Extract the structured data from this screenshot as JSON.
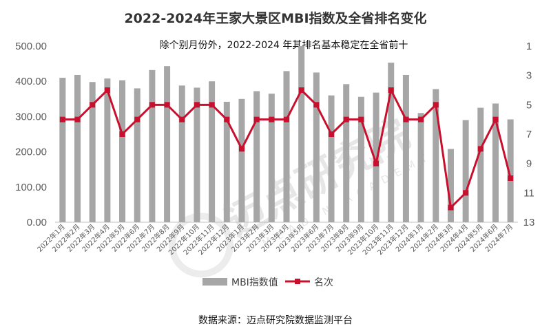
{
  "title": "2022-2024年王家大景区MBI指数及全省排名变化",
  "subtitle": "除个别月份外，2022-2024 年其排名基本稳定在全省前十",
  "source": "数据来源：迈点研究院数据监测平台",
  "watermark": {
    "cn": "迈点研究院",
    "en": "MEADIN ACADEMY"
  },
  "colors": {
    "bar": "#a6a6a6",
    "line": "#c8102e",
    "axis": "#bfbfbf",
    "text": "#595959"
  },
  "chart_data": {
    "type": "bar",
    "categories": [
      "2022年1月",
      "2022年2月",
      "2022年3月",
      "2022年4月",
      "2022年5月",
      "2022年6月",
      "2022年7月",
      "2022年8月",
      "2022年9月",
      "2022年10月",
      "2022年11月",
      "2022年12月",
      "2023年1月",
      "2023年2月",
      "2023年3月",
      "2023年4月",
      "2023年5月",
      "2023年6月",
      "2023年7月",
      "2023年8月",
      "2023年9月",
      "2023年10月",
      "2023年11月",
      "2023年12月",
      "2024年1月",
      "2024年2月",
      "2024年3月",
      "2024年4月",
      "2024年5月",
      "2024年6月",
      "2024年7月"
    ],
    "series": [
      {
        "name": "MBI指数值",
        "type": "bar",
        "axis": "left",
        "values": [
          410,
          418,
          398,
          408,
          403,
          380,
          432,
          443,
          388,
          382,
          400,
          342,
          350,
          372,
          365,
          429,
          500,
          425,
          360,
          392,
          356,
          368,
          453,
          418,
          310,
          378,
          208,
          290,
          325,
          337,
          292
        ]
      },
      {
        "name": "名次",
        "type": "line",
        "axis": "right",
        "values": [
          6,
          6,
          5,
          4,
          7,
          6,
          5,
          5,
          6,
          5,
          5,
          6,
          8,
          6,
          6,
          6,
          4,
          5,
          7,
          6,
          6,
          9,
          4,
          6,
          6,
          5,
          12,
          11,
          8,
          6,
          10
        ]
      }
    ],
    "y_left": {
      "ylim": [
        0,
        500
      ],
      "ticks": [
        "0.00",
        "100.00",
        "200.00",
        "300.00",
        "400.00",
        "500.00"
      ]
    },
    "y_right": {
      "ylim": [
        1,
        13
      ],
      "reversed": true,
      "ticks": [
        "1",
        "3",
        "5",
        "7",
        "9",
        "11",
        "13"
      ]
    },
    "legend": {
      "position": "bottom",
      "items": [
        "MBI指数值",
        "名次"
      ]
    },
    "grid": false
  }
}
